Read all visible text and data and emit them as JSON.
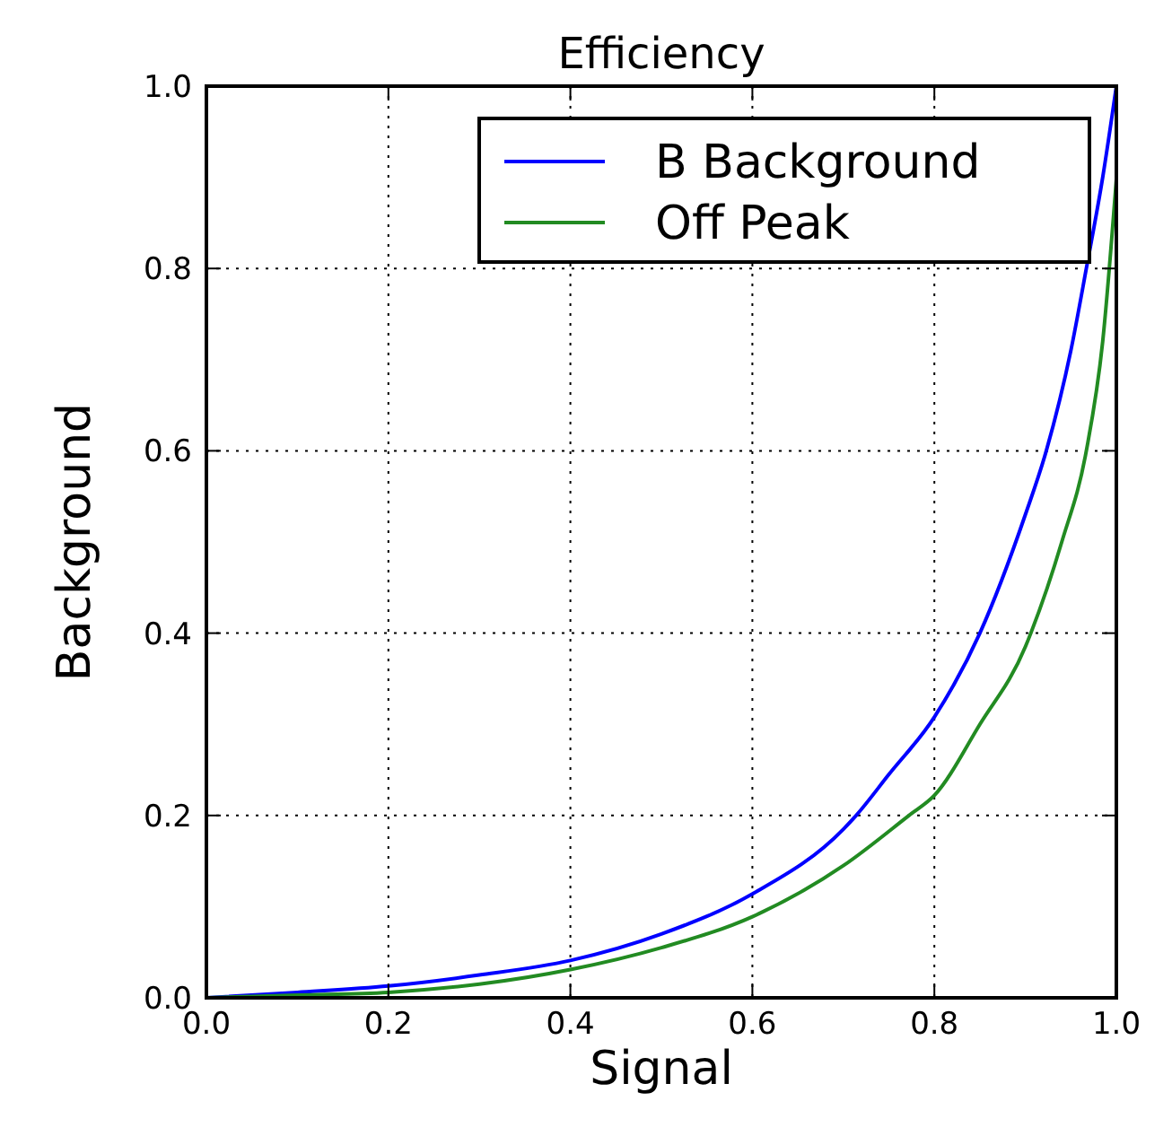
{
  "chart_data": {
    "type": "line",
    "title": "Efficiency",
    "xlabel": "Signal",
    "ylabel": "Background",
    "xlim": [
      0,
      1
    ],
    "ylim": [
      0,
      1
    ],
    "xticks": [
      {
        "value": 0,
        "label": "0.0"
      },
      {
        "value": 0.2,
        "label": "0.2"
      },
      {
        "value": 0.4,
        "label": "0.4"
      },
      {
        "value": 0.6,
        "label": "0.6"
      },
      {
        "value": 0.8,
        "label": "0.8"
      },
      {
        "value": 1,
        "label": "1.0"
      }
    ],
    "yticks": [
      {
        "value": 0,
        "label": "0.0"
      },
      {
        "value": 0.2,
        "label": "0.2"
      },
      {
        "value": 0.4,
        "label": "0.4"
      },
      {
        "value": 0.6,
        "label": "0.6"
      },
      {
        "value": 0.8,
        "label": "0.8"
      },
      {
        "value": 1,
        "label": "1.0"
      }
    ],
    "grid": true,
    "legend": "top right",
    "line_style": "solid",
    "series": [
      {
        "name": "B Background",
        "color": "#0000ff",
        "x": [
          0,
          0.1,
          0.2,
          0.3,
          0.4,
          0.5,
          0.6,
          0.7,
          0.714,
          0.75,
          0.8,
          0.85,
          0.9,
          0.923,
          0.95,
          0.967,
          0.985,
          1
        ],
        "values": [
          0,
          0.006,
          0.013,
          0.025,
          0.041,
          0.07,
          0.114,
          0.185,
          0.2,
          0.245,
          0.308,
          0.4,
          0.53,
          0.6,
          0.71,
          0.8,
          0.9,
          1
        ]
      },
      {
        "name": "Off Peak",
        "color": "#228b22",
        "x": [
          0,
          0.1,
          0.2,
          0.3,
          0.4,
          0.5,
          0.6,
          0.7,
          0.772,
          0.8,
          0.85,
          0.9,
          0.906,
          0.94,
          0.967,
          0.985,
          1
        ],
        "values": [
          0,
          0.003,
          0.006,
          0.015,
          0.031,
          0.055,
          0.089,
          0.145,
          0.2,
          0.222,
          0.3,
          0.385,
          0.4,
          0.5,
          0.6,
          0.72,
          0.898
        ]
      }
    ]
  }
}
